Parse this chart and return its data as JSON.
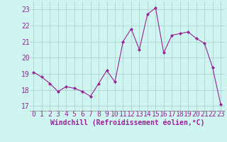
{
  "x": [
    0,
    1,
    2,
    3,
    4,
    5,
    6,
    7,
    8,
    9,
    10,
    11,
    12,
    13,
    14,
    15,
    16,
    17,
    18,
    19,
    20,
    21,
    22,
    23
  ],
  "y": [
    19.1,
    18.8,
    18.4,
    17.9,
    18.2,
    18.1,
    17.9,
    17.6,
    18.4,
    19.2,
    18.5,
    21.0,
    21.8,
    20.5,
    22.7,
    23.1,
    20.3,
    21.4,
    21.5,
    21.6,
    21.2,
    20.9,
    19.4,
    17.1
  ],
  "line_color": "#992299",
  "marker": "D",
  "marker_size": 2.5,
  "bg_color": "#cef5f0",
  "grid_color": "#aacccc",
  "xlabel": "Windchill (Refroidissement éolien,°C)",
  "xlabel_color": "#992299",
  "tick_color": "#992299",
  "ylim": [
    16.7,
    23.5
  ],
  "xlim": [
    -0.5,
    23.5
  ],
  "yticks": [
    17,
    18,
    19,
    20,
    21,
    22,
    23
  ],
  "xticks": [
    0,
    1,
    2,
    3,
    4,
    5,
    6,
    7,
    8,
    9,
    10,
    11,
    12,
    13,
    14,
    15,
    16,
    17,
    18,
    19,
    20,
    21,
    22,
    23
  ],
  "tick_fontsize": 7,
  "xlabel_fontsize": 7
}
